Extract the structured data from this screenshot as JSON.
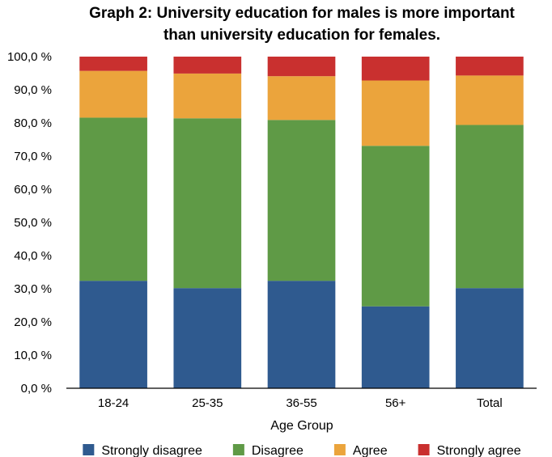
{
  "chart_data": {
    "type": "bar",
    "stacked": true,
    "title": "Graph 2: University education for males is more important than university education for females.",
    "title_lines": [
      "Graph 2: University education for males is more important",
      "than university education for females."
    ],
    "xlabel": "Age Group",
    "ylabel": "",
    "ylim": [
      0,
      100
    ],
    "yticks": [
      0,
      10,
      20,
      30,
      40,
      50,
      60,
      70,
      80,
      90,
      100
    ],
    "ytick_labels": [
      "0,0 %",
      "10,0 %",
      "20,0 %",
      "30,0 %",
      "40,0 %",
      "50,0 %",
      "60,0 %",
      "70,0 %",
      "80,0 %",
      "90,0 %",
      "100,0 %"
    ],
    "categories": [
      "18-24",
      "25-35",
      "36-55",
      "56+",
      "Total"
    ],
    "series": [
      {
        "name": "Strongly disagree",
        "color": "#2f5a8f",
        "values": [
          32.4,
          30.2,
          32.4,
          24.7,
          30.2
        ]
      },
      {
        "name": "Disagree",
        "color": "#5f9a46",
        "values": [
          49.2,
          51.2,
          48.5,
          48.4,
          49.2
        ]
      },
      {
        "name": "Agree",
        "color": "#eba43c",
        "values": [
          14.1,
          13.5,
          13.2,
          19.7,
          14.9
        ]
      },
      {
        "name": "Strongly agree",
        "color": "#c9302f",
        "values": [
          4.3,
          5.1,
          5.9,
          7.2,
          5.7
        ]
      }
    ],
    "grid": false,
    "legend_position": "bottom"
  }
}
